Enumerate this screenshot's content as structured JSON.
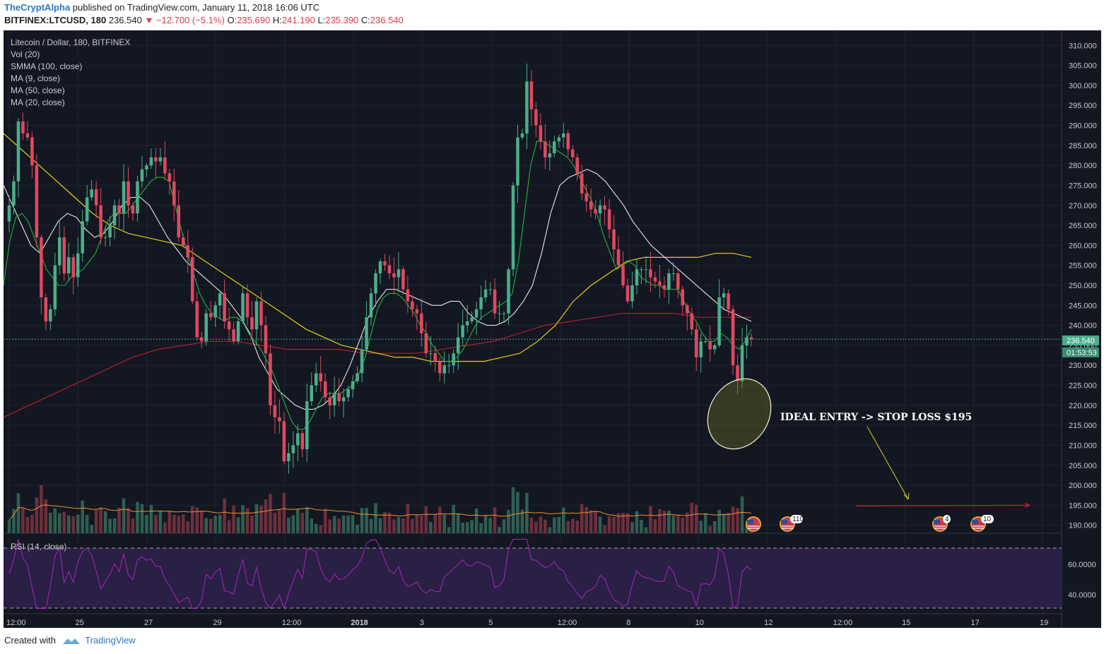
{
  "header": {
    "author": "TheCryptAlpha",
    "published_on": "published on TradingView.com, January 11, 2018 16:06 UTC",
    "symbol": "BITFINEX:LTCUSD, 180",
    "last": "236.540",
    "change": "−12.700 (−5.1%)",
    "o_label": "O:",
    "o": "235.690",
    "h_label": "H:",
    "h": "241.190",
    "l_label": "L:",
    "l": "235.390",
    "c_label": "C:",
    "c": "236.540"
  },
  "legend": {
    "title": "Litecoin / Dollar, 180, BITFINEX",
    "vol": "Vol (20)",
    "smma": "SMMA (100, close)",
    "ma9": "MA (9, close)",
    "ma50": "MA (50, close)",
    "ma20": "MA (20, close)"
  },
  "price_axis": {
    "ticks": [
      "310.000",
      "305.000",
      "300.000",
      "295.000",
      "290.000",
      "285.000",
      "280.000",
      "275.000",
      "270.000",
      "265.000",
      "260.000",
      "255.000",
      "250.000",
      "245.000",
      "240.000",
      "235.000",
      "230.000",
      "225.000",
      "220.000",
      "215.000",
      "210.000",
      "205.000",
      "200.000",
      "195.000",
      "190.000"
    ],
    "last_price": "236.540",
    "countdown": "01:53:53"
  },
  "rsi": {
    "label": "RSI (14, close)",
    "ticks": [
      "60.0000",
      "40.0000"
    ]
  },
  "time_axis": [
    "12:00",
    "25",
    "27",
    "29",
    "12:00",
    "2018",
    "3",
    "5",
    "12:00",
    "8",
    "10",
    "12",
    "12:00",
    "15",
    "17",
    "19"
  ],
  "annotation": {
    "text": "IDEAL ENTRY -> STOP LOSS $195"
  },
  "event_badges": [
    "",
    "110",
    "4",
    "10"
  ],
  "footer": {
    "created_with": "Created with",
    "brand": "TradingView"
  },
  "colors": {
    "background": "#131722",
    "up": "#4bae8a",
    "down": "#e2485f",
    "ma9": "#21b33a",
    "ma20": "#e8e8e8",
    "ma50": "#e3d10c",
    "smma": "#b0202a",
    "rsi": "#9c27b0",
    "annotation": "#ffffff",
    "arrow": "#d9d128"
  },
  "chart_data": {
    "type": "candlestick",
    "title": "Litecoin / Dollar, 180, BITFINEX",
    "ylim": [
      188,
      312
    ],
    "close_series": [
      270,
      276,
      291,
      288,
      287,
      280,
      262,
      247,
      241,
      244,
      255,
      262,
      253,
      257,
      252,
      258,
      266,
      272,
      274,
      270,
      262,
      262,
      265,
      270,
      268,
      276,
      270,
      268,
      276,
      279,
      280,
      282,
      281,
      282,
      278,
      276,
      270,
      262,
      260,
      257,
      246,
      237,
      236,
      243,
      242,
      245,
      248,
      241,
      239,
      236,
      241,
      248,
      242,
      239,
      246,
      240,
      233,
      220,
      217,
      216,
      206,
      208,
      210,
      213,
      209,
      221,
      225,
      228,
      226,
      222,
      220,
      223,
      221,
      222,
      224,
      226,
      228,
      234,
      242,
      248,
      253,
      256,
      255,
      253,
      252,
      254,
      249,
      246,
      244,
      243,
      238,
      233,
      233,
      231,
      228,
      230,
      230,
      233,
      237,
      240,
      241,
      242,
      244,
      247,
      249,
      249,
      243,
      243,
      243,
      254,
      275,
      287,
      288,
      301,
      294,
      290,
      286,
      282,
      283,
      286,
      287,
      288,
      284,
      282,
      278,
      273,
      271,
      269,
      268,
      270,
      269,
      264,
      259,
      255,
      250,
      246,
      250,
      254,
      254,
      254,
      252,
      251,
      250,
      249,
      253,
      253,
      249,
      245,
      243,
      239,
      232,
      236,
      236,
      234,
      235,
      247,
      248,
      244,
      230,
      226,
      235,
      237,
      236.54
    ],
    "ma9_series": [
      250,
      261,
      267,
      268,
      266,
      262,
      258,
      254,
      252,
      250,
      250,
      252,
      253,
      254,
      256,
      258,
      262,
      266,
      268,
      268,
      268,
      270,
      272,
      274,
      276,
      277,
      277,
      276,
      270,
      264,
      258,
      253,
      248,
      245,
      243,
      242,
      241,
      242,
      242,
      241,
      238,
      236,
      234,
      231,
      228,
      224,
      220,
      216,
      214,
      214,
      216,
      219,
      222,
      223,
      223,
      223,
      224,
      225,
      228,
      232,
      238,
      244,
      247,
      248,
      248,
      247,
      245,
      243,
      240,
      238,
      235,
      233,
      231,
      231,
      232,
      234,
      237,
      240,
      242,
      243,
      244,
      245,
      246,
      248,
      256,
      268,
      280,
      286,
      286,
      285,
      284,
      283,
      282,
      280,
      277,
      274,
      271,
      267,
      262,
      258,
      254,
      255,
      256,
      255,
      252,
      251,
      250,
      250,
      249,
      249,
      249,
      246,
      243,
      241,
      238,
      236,
      236,
      238,
      237,
      235,
      234,
      236,
      239
    ],
    "ma20_series": [
      275,
      270,
      265,
      260,
      258,
      262,
      266,
      268,
      267,
      264,
      262,
      263,
      266,
      270,
      272,
      272,
      270,
      266,
      262,
      259,
      256,
      254,
      252,
      250,
      248,
      245,
      242,
      238,
      232,
      228,
      224,
      222,
      220,
      219,
      219,
      220,
      222,
      225,
      230,
      236,
      242,
      246,
      249,
      249,
      248,
      247,
      246,
      245,
      245,
      246,
      246,
      243,
      241,
      240,
      240,
      241,
      243,
      246,
      250,
      258,
      268,
      275,
      277,
      278,
      279,
      278,
      276,
      273,
      270,
      266,
      263,
      260,
      258,
      256,
      254,
      252,
      250,
      248,
      246,
      244,
      243,
      242,
      241
    ],
    "ma50_series": [
      288,
      284,
      280,
      276,
      272,
      268,
      265,
      263,
      262,
      261,
      260,
      257,
      254,
      251,
      248,
      245,
      242,
      239,
      237,
      235,
      234,
      233,
      232,
      232,
      231,
      231,
      231,
      231,
      232,
      233,
      236,
      240,
      246,
      250,
      253,
      256,
      257,
      257,
      257,
      257,
      258,
      258,
      257
    ],
    "smma_series": [
      217,
      220,
      223,
      226,
      229,
      232,
      234,
      235,
      236,
      236,
      235,
      234,
      234,
      234,
      233,
      233,
      233,
      234,
      235,
      236,
      238,
      240,
      241,
      242,
      243,
      243,
      243,
      242,
      242,
      242
    ],
    "annotation": "IDEAL ENTRY -> STOP LOSS $195",
    "stop_loss": 195,
    "rsi_ylim": [
      28,
      72
    ]
  }
}
